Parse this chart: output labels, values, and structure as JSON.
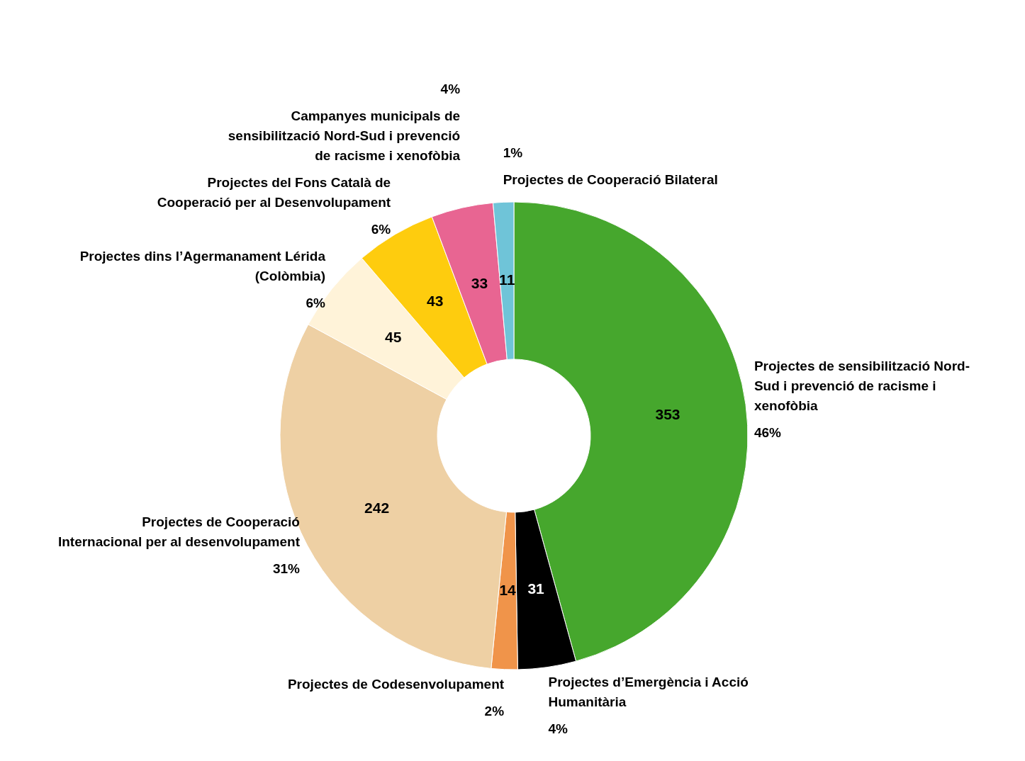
{
  "chart_data": {
    "type": "donut",
    "categories": [
      "Projectes de sensibilització Nord-Sud i prevenció de racisme i xenofòbia",
      "Projectes d’Emergència i Acció Humanitària",
      "Projectes de Codesenvolupament",
      "Projectes de Cooperació Internacional per al desenvolupament",
      "Projectes dins l’Agermanament Lérida (Colòmbia)",
      "Projectes del Fons Català de Cooperació per al Desenvolupament",
      "Campanyes municipals de sensibilització Nord-Sud i prevenció de racisme i xenofòbia",
      "Projectes de Cooperació Bilateral"
    ],
    "values": [
      353,
      31,
      14,
      242,
      45,
      43,
      33,
      11
    ],
    "colors": [
      "#46a72d",
      "#000000",
      "#f0944a",
      "#eed0a4",
      "#fff3d9",
      "#fecc0e",
      "#e86592",
      "#6fc4d8"
    ],
    "data_labels": true,
    "annotations": [
      "46%",
      "4%",
      "2%",
      "31%",
      "6%",
      "6%",
      "4%",
      "1%"
    ]
  }
}
